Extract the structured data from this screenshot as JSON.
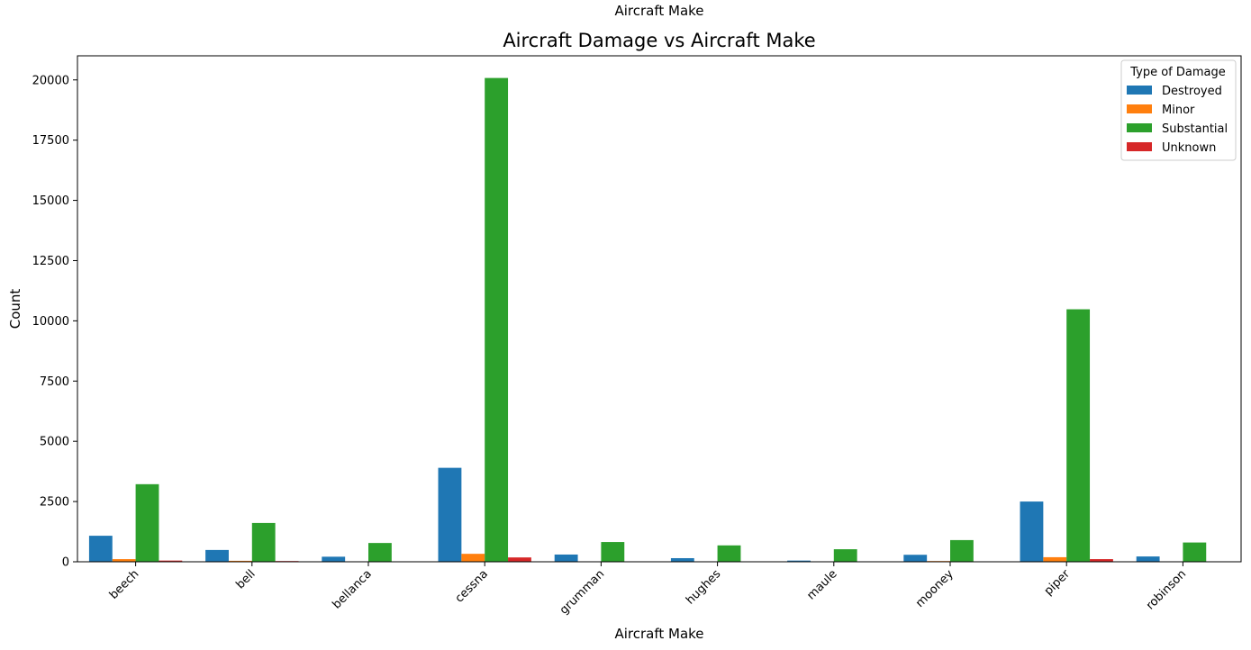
{
  "figure": {
    "suptitle": "Aircraft Make"
  },
  "chart_data": {
    "type": "bar",
    "title": "Aircraft Damage vs Aircraft Make",
    "xlabel": "Aircraft Make",
    "ylabel": "Count",
    "ylim": [
      0,
      21000
    ],
    "yticks": [
      0,
      2500,
      5000,
      7500,
      10000,
      12500,
      15000,
      17500,
      20000
    ],
    "ytick_labels": [
      "0",
      "2500",
      "5000",
      "7500",
      "10000",
      "12500",
      "15000",
      "17500",
      "20000"
    ],
    "grid": false,
    "categories": [
      "beech",
      "bell",
      "bellanca",
      "cessna",
      "grumman",
      "hughes",
      "maule",
      "mooney",
      "piper",
      "robinson"
    ],
    "x_tick_rotation_deg": 45,
    "legend": {
      "title": "Type of Damage",
      "placement": "top-right"
    },
    "series": [
      {
        "name": "Destroyed",
        "color": "#1f77b4",
        "values": [
          1080,
          490,
          210,
          3900,
          300,
          150,
          50,
          290,
          2500,
          220
        ]
      },
      {
        "name": "Minor",
        "color": "#ff7f0e",
        "values": [
          110,
          40,
          10,
          330,
          10,
          10,
          5,
          30,
          190,
          10
        ]
      },
      {
        "name": "Substantial",
        "color": "#2ca02c",
        "values": [
          3220,
          1610,
          780,
          20080,
          820,
          680,
          520,
          900,
          10480,
          800
        ]
      },
      {
        "name": "Unknown",
        "color": "#d62728",
        "values": [
          50,
          30,
          5,
          180,
          5,
          5,
          2,
          10,
          110,
          5
        ]
      }
    ]
  }
}
